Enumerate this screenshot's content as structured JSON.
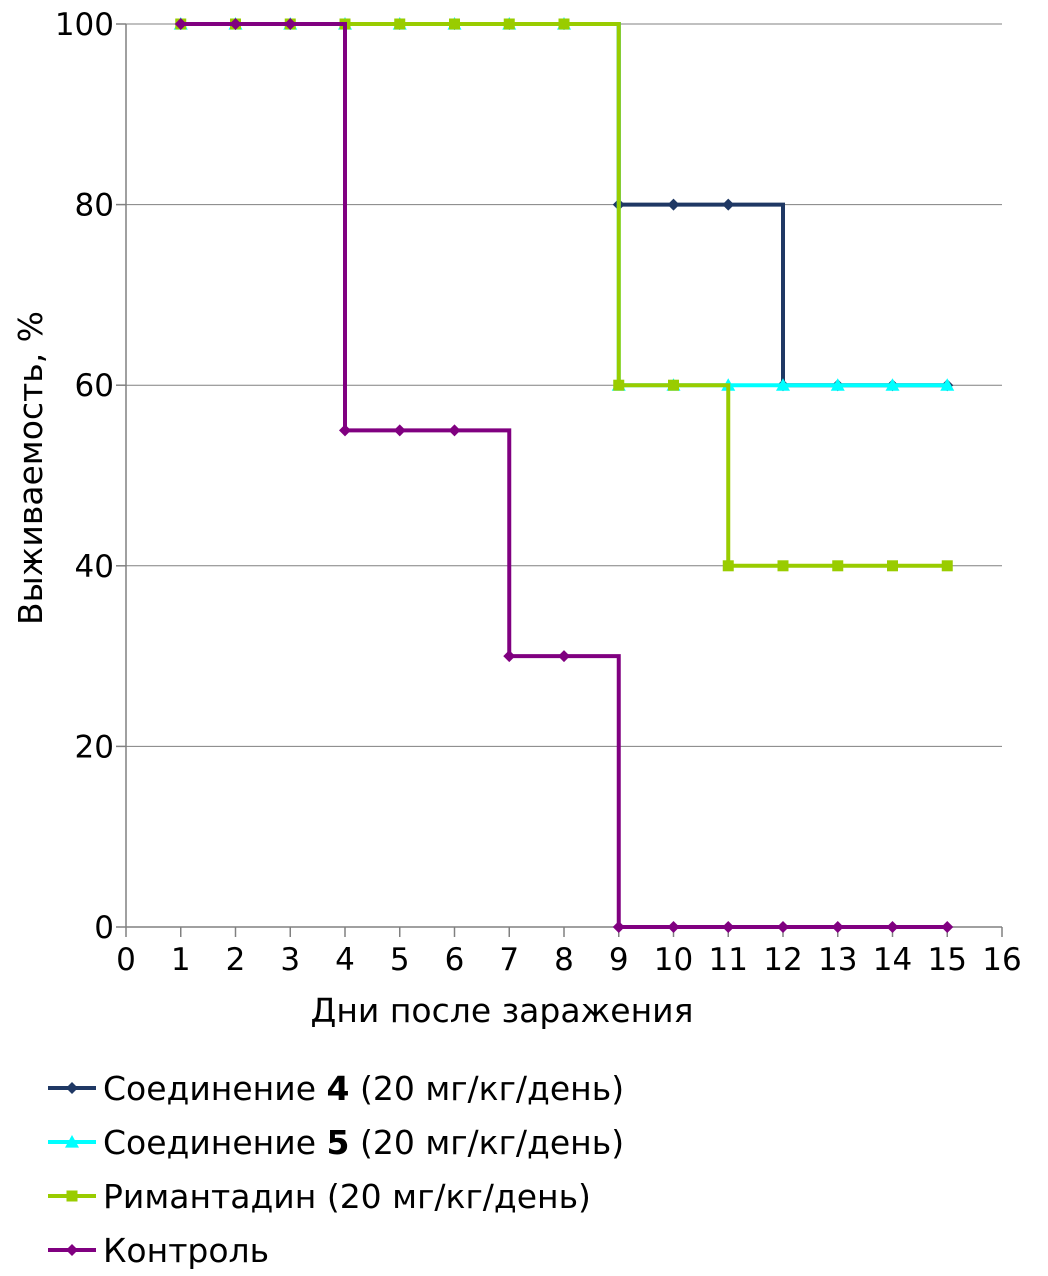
{
  "chart_data": {
    "type": "line",
    "step": true,
    "xlabel": "Дни после заражения",
    "ylabel": "Выживаемость, %",
    "xlim": [
      0,
      16
    ],
    "ylim": [
      0,
      100
    ],
    "x_ticks": [
      0,
      1,
      2,
      3,
      4,
      5,
      6,
      7,
      8,
      9,
      10,
      11,
      12,
      13,
      14,
      15,
      16
    ],
    "y_ticks": [
      0,
      20,
      40,
      60,
      80,
      100
    ],
    "grid": "horizontal",
    "legend_position": "bottom",
    "series": [
      {
        "name": "Соединение 4 (20 мг/кг/день)",
        "legend_parts": [
          "Соединение ",
          "4",
          " (20 мг/кг/день)"
        ],
        "color": "#1f3864",
        "marker": "diamond",
        "x": [
          1,
          2,
          3,
          4,
          5,
          6,
          7,
          8,
          9,
          10,
          11,
          12,
          13,
          14,
          15
        ],
        "y": [
          100,
          100,
          100,
          100,
          100,
          100,
          100,
          100,
          80,
          80,
          80,
          60,
          60,
          60,
          60
        ]
      },
      {
        "name": "Соединение 5 (20 мг/кг/день)",
        "legend_parts": [
          "Соединение ",
          "5",
          " (20 мг/кг/день)"
        ],
        "color": "#00ffff",
        "marker": "triangle",
        "x": [
          1,
          2,
          3,
          4,
          5,
          6,
          7,
          8,
          9,
          10,
          11,
          12,
          13,
          14,
          15
        ],
        "y": [
          100,
          100,
          100,
          100,
          100,
          100,
          100,
          100,
          60,
          60,
          60,
          60,
          60,
          60,
          60
        ]
      },
      {
        "name": "Римантадин (20 мг/кг/день)",
        "legend_parts": [
          "Римантадин (20 мг/кг/день)",
          "",
          ""
        ],
        "color": "#99cc00",
        "marker": "square",
        "x": [
          1,
          2,
          3,
          4,
          5,
          6,
          7,
          8,
          9,
          10,
          11,
          12,
          13,
          14,
          15
        ],
        "y": [
          100,
          100,
          100,
          100,
          100,
          100,
          100,
          100,
          60,
          60,
          40,
          40,
          40,
          40,
          40
        ]
      },
      {
        "name": "Контроль",
        "legend_parts": [
          "Контроль",
          "",
          ""
        ],
        "color": "#800080",
        "marker": "diamond",
        "x": [
          1,
          2,
          3,
          4,
          5,
          6,
          7,
          8,
          9,
          10,
          11,
          12,
          13,
          14,
          15
        ],
        "y": [
          100,
          100,
          100,
          55,
          55,
          55,
          30,
          30,
          0,
          0,
          0,
          0,
          0,
          0,
          0
        ]
      }
    ]
  }
}
